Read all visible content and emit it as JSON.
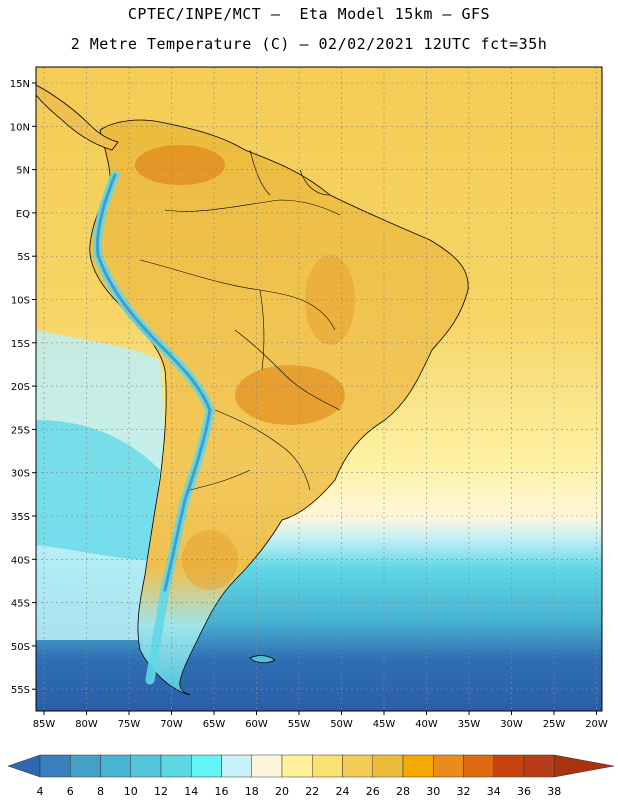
{
  "title_line1": "CPTEC/INPE/MCT –  Eta Model 15km – GFS",
  "title_line2": "2 Metre Temperature (C) – 02/02/2021 12UTC fct=35h",
  "lat_labels": [
    "15N",
    "10N",
    "5N",
    "EQ",
    "5S",
    "10S",
    "15S",
    "20S",
    "25S",
    "30S",
    "35S",
    "40S",
    "45S",
    "50S",
    "55S"
  ],
  "lon_labels": [
    "85W",
    "80W",
    "75W",
    "70W",
    "65W",
    "60W",
    "55W",
    "50W",
    "45W",
    "40W",
    "35W",
    "30W",
    "25W",
    "20W"
  ],
  "colorbar": {
    "labels": [
      "4",
      "6",
      "8",
      "10",
      "12",
      "14",
      "16",
      "18",
      "20",
      "22",
      "24",
      "26",
      "28",
      "30",
      "32",
      "34",
      "36",
      "38"
    ],
    "colors": [
      "#2f68b0",
      "#3a80bd",
      "#44a0c8",
      "#49b4d4",
      "#53c6dc",
      "#5cd8e4",
      "#63f4f8",
      "#c8f2fa",
      "#fdf6dc",
      "#fdf19a",
      "#f9e272",
      "#f3cc55",
      "#ecbb3c",
      "#f4a800",
      "#e98c1c",
      "#dd6a10",
      "#c84210",
      "#b83c1a",
      "#a8330c"
    ]
  },
  "colors": {
    "land_warm": "#efc253",
    "land_hot": "#e3a032",
    "ocean_north": "#f3cc5a",
    "ocean_mid": "#fdf3a4",
    "ocean_cool": "#5fd6e6",
    "ocean_cold": "#2d68b0"
  }
}
